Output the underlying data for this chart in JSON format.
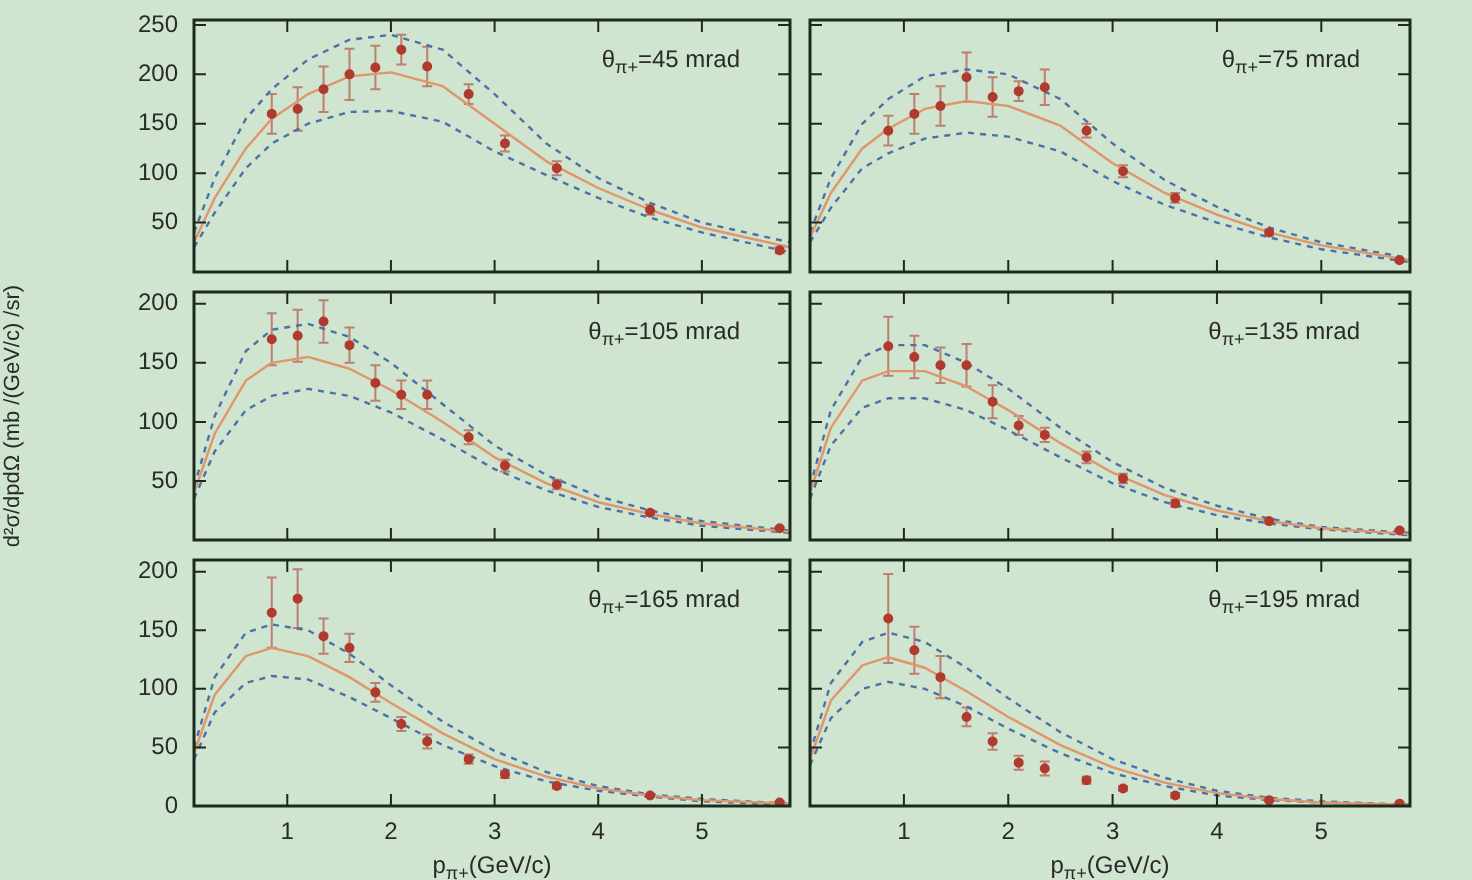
{
  "chart_data": [
    {
      "type": "scatter",
      "x": [
        0.85,
        1.1,
        1.35,
        1.6,
        1.85,
        2.1,
        2.35,
        2.75,
        3.1,
        3.6,
        4.5,
        5.75
      ],
      "xlim": [
        0.1,
        5.85
      ],
      "xticks": [
        1,
        2,
        3,
        4,
        5
      ],
      "ylim": [
        0,
        255
      ],
      "yticks": [
        50,
        100,
        150,
        200,
        250
      ],
      "tick_labels": "y",
      "annotations": [
        "θ$_{π+}$=45 mrad"
      ],
      "series": [
        {
          "type": "scatter",
          "marker": "circle",
          "color": "#b03a2e",
          "values": [
            160,
            165,
            185,
            200,
            207,
            225,
            208,
            180,
            130,
            105,
            63,
            22
          ],
          "errors": [
            20,
            22,
            23,
            26,
            22,
            15,
            20,
            10,
            8,
            7,
            5,
            3
          ]
        },
        {
          "type": "line",
          "marker": "none",
          "color": "#e0956b",
          "x": [
            0.1,
            0.3,
            0.6,
            0.85,
            1.2,
            1.6,
            2.0,
            2.5,
            3.0,
            3.5,
            4.0,
            4.5,
            5.0,
            5.85
          ],
          "values": [
            30,
            75,
            125,
            155,
            180,
            198,
            202,
            188,
            150,
            112,
            85,
            63,
            45,
            25
          ]
        },
        {
          "type": "line",
          "marker": "none",
          "line_style": "dashed",
          "color": "#4a72a8",
          "x": [
            0.1,
            0.3,
            0.6,
            0.85,
            1.2,
            1.6,
            2.0,
            2.5,
            3.0,
            3.5,
            4.0,
            4.5,
            5.0,
            5.85
          ],
          "values": [
            40,
            95,
            155,
            185,
            215,
            235,
            240,
            225,
            180,
            130,
            95,
            70,
            50,
            30
          ]
        },
        {
          "type": "line",
          "marker": "none",
          "line_style": "dashed",
          "color": "#4a72a8",
          "x": [
            0.1,
            0.3,
            0.6,
            0.85,
            1.2,
            1.6,
            2.0,
            2.5,
            3.0,
            3.5,
            4.0,
            4.5,
            5.0,
            5.85
          ],
          "values": [
            25,
            60,
            105,
            130,
            150,
            162,
            163,
            152,
            122,
            98,
            75,
            55,
            40,
            20
          ]
        }
      ]
    },
    {
      "type": "scatter",
      "x": [
        0.85,
        1.1,
        1.35,
        1.6,
        1.85,
        2.1,
        2.35,
        2.75,
        3.1,
        3.6,
        4.5,
        5.75
      ],
      "xlim": [
        0.1,
        5.85
      ],
      "xticks": [
        1,
        2,
        3,
        4,
        5
      ],
      "ylim": [
        0,
        255
      ],
      "yticks": [
        50,
        100,
        150,
        200,
        250
      ],
      "tick_labels": false,
      "annotations": [
        "θ$_{π+}$=75 mrad"
      ],
      "series": [
        {
          "type": "scatter",
          "marker": "circle",
          "color": "#b03a2e",
          "values": [
            143,
            160,
            168,
            197,
            177,
            183,
            187,
            143,
            102,
            75,
            40,
            12
          ],
          "errors": [
            15,
            20,
            20,
            25,
            20,
            10,
            18,
            7,
            6,
            5,
            3,
            2
          ]
        },
        {
          "type": "line",
          "marker": "none",
          "color": "#e0956b",
          "x": [
            0.1,
            0.3,
            0.6,
            0.85,
            1.2,
            1.6,
            2.0,
            2.5,
            3.0,
            3.5,
            4.0,
            4.5,
            5.0,
            5.85
          ],
          "values": [
            35,
            80,
            125,
            145,
            165,
            173,
            168,
            148,
            110,
            80,
            58,
            40,
            27,
            12
          ]
        },
        {
          "type": "line",
          "marker": "none",
          "line_style": "dashed",
          "color": "#4a72a8",
          "x": [
            0.1,
            0.3,
            0.6,
            0.85,
            1.2,
            1.6,
            2.0,
            2.5,
            3.0,
            3.5,
            4.0,
            4.5,
            5.0,
            5.85
          ],
          "values": [
            40,
            95,
            150,
            175,
            198,
            205,
            200,
            175,
            130,
            93,
            66,
            45,
            30,
            14
          ]
        },
        {
          "type": "line",
          "marker": "none",
          "line_style": "dashed",
          "color": "#4a72a8",
          "x": [
            0.1,
            0.3,
            0.6,
            0.85,
            1.2,
            1.6,
            2.0,
            2.5,
            3.0,
            3.5,
            4.0,
            4.5,
            5.0,
            5.85
          ],
          "values": [
            30,
            65,
            105,
            120,
            135,
            141,
            137,
            122,
            92,
            68,
            50,
            35,
            23,
            10
          ]
        }
      ]
    },
    {
      "type": "scatter",
      "x": [
        0.85,
        1.1,
        1.35,
        1.6,
        1.85,
        2.1,
        2.35,
        2.75,
        3.1,
        3.6,
        4.5,
        5.75
      ],
      "xlim": [
        0.1,
        5.85
      ],
      "xticks": [
        1,
        2,
        3,
        4,
        5
      ],
      "ylim": [
        0,
        210
      ],
      "yticks": [
        50,
        100,
        150,
        200
      ],
      "tick_labels": "y",
      "ylabel": "d²σ/dpdΩ (mb /(GeV/c) /sr)",
      "annotations": [
        "θ$_{π+}$=105 mrad"
      ],
      "series": [
        {
          "type": "scatter",
          "marker": "circle",
          "color": "#b03a2e",
          "values": [
            170,
            173,
            185,
            165,
            133,
            123,
            123,
            87,
            63,
            47,
            23,
            10
          ],
          "errors": [
            22,
            22,
            18,
            15,
            15,
            12,
            12,
            6,
            5,
            4,
            2,
            1
          ]
        },
        {
          "type": "line",
          "marker": "none",
          "color": "#e0956b",
          "x": [
            0.1,
            0.3,
            0.6,
            0.85,
            1.2,
            1.6,
            2.0,
            2.5,
            3.0,
            3.5,
            4.0,
            4.5,
            5.0,
            5.85
          ],
          "values": [
            40,
            90,
            135,
            150,
            155,
            145,
            127,
            100,
            70,
            48,
            32,
            22,
            14,
            7
          ]
        },
        {
          "type": "line",
          "marker": "none",
          "line_style": "dashed",
          "color": "#4a72a8",
          "x": [
            0.1,
            0.3,
            0.6,
            0.85,
            1.2,
            1.6,
            2.0,
            2.5,
            3.0,
            3.5,
            4.0,
            4.5,
            5.0,
            5.85
          ],
          "values": [
            45,
            105,
            160,
            178,
            183,
            172,
            150,
            115,
            80,
            55,
            37,
            25,
            16,
            8
          ]
        },
        {
          "type": "line",
          "marker": "none",
          "line_style": "dashed",
          "color": "#4a72a8",
          "x": [
            0.1,
            0.3,
            0.6,
            0.85,
            1.2,
            1.6,
            2.0,
            2.5,
            3.0,
            3.5,
            4.0,
            4.5,
            5.0,
            5.85
          ],
          "values": [
            35,
            75,
            110,
            122,
            128,
            122,
            108,
            85,
            60,
            42,
            28,
            19,
            12,
            6
          ]
        }
      ]
    },
    {
      "type": "scatter",
      "x": [
        0.85,
        1.1,
        1.35,
        1.6,
        1.85,
        2.1,
        2.35,
        2.75,
        3.1,
        3.6,
        4.5,
        5.75
      ],
      "xlim": [
        0.1,
        5.85
      ],
      "xticks": [
        1,
        2,
        3,
        4,
        5
      ],
      "ylim": [
        0,
        210
      ],
      "yticks": [
        50,
        100,
        150,
        200
      ],
      "tick_labels": false,
      "annotations": [
        "θ$_{π+}$=135 mrad"
      ],
      "series": [
        {
          "type": "scatter",
          "marker": "circle",
          "color": "#b03a2e",
          "values": [
            164,
            155,
            148,
            148,
            117,
            97,
            89,
            70,
            52,
            31,
            16,
            8
          ],
          "errors": [
            25,
            18,
            15,
            18,
            14,
            8,
            6,
            5,
            4,
            3,
            2,
            1
          ]
        },
        {
          "type": "line",
          "marker": "none",
          "color": "#e0956b",
          "x": [
            0.1,
            0.3,
            0.6,
            0.85,
            1.2,
            1.6,
            2.0,
            2.5,
            3.0,
            3.5,
            4.0,
            4.5,
            5.0,
            5.85
          ],
          "values": [
            40,
            95,
            135,
            143,
            143,
            130,
            110,
            82,
            57,
            38,
            25,
            16,
            10,
            5
          ]
        },
        {
          "type": "line",
          "marker": "none",
          "line_style": "dashed",
          "color": "#4a72a8",
          "x": [
            0.1,
            0.3,
            0.6,
            0.85,
            1.2,
            1.6,
            2.0,
            2.5,
            3.0,
            3.5,
            4.0,
            4.5,
            5.0,
            5.85
          ],
          "values": [
            45,
            110,
            155,
            165,
            165,
            150,
            128,
            95,
            66,
            44,
            29,
            18,
            11,
            6
          ]
        },
        {
          "type": "line",
          "marker": "none",
          "line_style": "dashed",
          "color": "#4a72a8",
          "x": [
            0.1,
            0.3,
            0.6,
            0.85,
            1.2,
            1.6,
            2.0,
            2.5,
            3.0,
            3.5,
            4.0,
            4.5,
            5.0,
            5.85
          ],
          "values": [
            35,
            80,
            112,
            120,
            120,
            110,
            93,
            70,
            48,
            32,
            21,
            14,
            9,
            4
          ]
        }
      ]
    },
    {
      "type": "scatter",
      "x": [
        0.85,
        1.1,
        1.35,
        1.6,
        1.85,
        2.1,
        2.35,
        2.75,
        3.1,
        3.6,
        4.5,
        5.75
      ],
      "xlim": [
        0.1,
        5.85
      ],
      "xticks": [
        1,
        2,
        3,
        4,
        5
      ],
      "ylim": [
        0,
        210
      ],
      "yticks": [
        0,
        50,
        100,
        150,
        200
      ],
      "xlabel": "p$_{π+}$(GeV/c)",
      "annotations": [
        "θ$_{π+}$=165 mrad"
      ],
      "series": [
        {
          "type": "scatter",
          "marker": "circle",
          "color": "#b03a2e",
          "values": [
            165,
            177,
            145,
            135,
            97,
            70,
            55,
            40,
            27,
            17,
            9,
            3
          ],
          "errors": [
            30,
            25,
            15,
            12,
            8,
            6,
            6,
            4,
            3,
            2,
            1,
            1
          ]
        },
        {
          "type": "line",
          "marker": "none",
          "color": "#e0956b",
          "x": [
            0.1,
            0.3,
            0.6,
            0.85,
            1.2,
            1.6,
            2.0,
            2.5,
            3.0,
            3.5,
            4.0,
            4.5,
            5.0,
            5.85
          ],
          "values": [
            45,
            95,
            128,
            135,
            128,
            110,
            88,
            62,
            40,
            25,
            15,
            9,
            5,
            2
          ]
        },
        {
          "type": "line",
          "marker": "none",
          "line_style": "dashed",
          "color": "#4a72a8",
          "x": [
            0.1,
            0.3,
            0.6,
            0.85,
            1.2,
            1.6,
            2.0,
            2.5,
            3.0,
            3.5,
            4.0,
            4.5,
            5.0,
            5.85
          ],
          "values": [
            50,
            110,
            148,
            155,
            150,
            130,
            103,
            72,
            47,
            29,
            17,
            10,
            6,
            2
          ]
        },
        {
          "type": "line",
          "marker": "none",
          "line_style": "dashed",
          "color": "#4a72a8",
          "x": [
            0.1,
            0.3,
            0.6,
            0.85,
            1.2,
            1.6,
            2.0,
            2.5,
            3.0,
            3.5,
            4.0,
            4.5,
            5.0,
            5.85
          ],
          "values": [
            40,
            80,
            105,
            111,
            108,
            93,
            75,
            52,
            34,
            21,
            13,
            8,
            4,
            1
          ]
        }
      ]
    },
    {
      "type": "scatter",
      "x": [
        0.85,
        1.1,
        1.35,
        1.6,
        1.85,
        2.1,
        2.35,
        2.75,
        3.1,
        3.6,
        4.5,
        5.75
      ],
      "xlim": [
        0.1,
        5.85
      ],
      "xticks": [
        1,
        2,
        3,
        4,
        5
      ],
      "ylim": [
        0,
        210
      ],
      "yticks": [
        0,
        50,
        100,
        150,
        200
      ],
      "tick_labels": "x",
      "xlabel": "p$_{π+}$(GeV/c)",
      "annotations": [
        "θ$_{π+}$=195 mrad"
      ],
      "series": [
        {
          "type": "scatter",
          "marker": "circle",
          "color": "#b03a2e",
          "values": [
            160,
            133,
            110,
            76,
            55,
            37,
            32,
            22,
            15,
            9,
            5,
            2
          ],
          "errors": [
            38,
            20,
            18,
            8,
            7,
            6,
            6,
            3,
            2,
            2,
            1,
            1
          ]
        },
        {
          "type": "line",
          "marker": "none",
          "color": "#e0956b",
          "x": [
            0.1,
            0.3,
            0.6,
            0.85,
            1.2,
            1.6,
            2.0,
            2.5,
            3.0,
            3.5,
            4.0,
            4.5,
            5.0,
            5.85
          ],
          "values": [
            40,
            90,
            120,
            127,
            118,
            98,
            76,
            52,
            33,
            20,
            11,
            6,
            3,
            1
          ]
        },
        {
          "type": "line",
          "marker": "none",
          "line_style": "dashed",
          "color": "#4a72a8",
          "x": [
            0.1,
            0.3,
            0.6,
            0.85,
            1.2,
            1.6,
            2.0,
            2.5,
            3.0,
            3.5,
            4.0,
            4.5,
            5.0,
            5.85
          ],
          "values": [
            45,
            105,
            140,
            148,
            140,
            118,
            92,
            63,
            40,
            24,
            13,
            7,
            4,
            1
          ]
        },
        {
          "type": "line",
          "marker": "none",
          "line_style": "dashed",
          "color": "#4a72a8",
          "x": [
            0.1,
            0.3,
            0.6,
            0.85,
            1.2,
            1.6,
            2.0,
            2.5,
            3.0,
            3.5,
            4.0,
            4.5,
            5.0,
            5.85
          ],
          "values": [
            35,
            75,
            100,
            106,
            100,
            85,
            66,
            45,
            28,
            17,
            9,
            5,
            3,
            1
          ]
        }
      ]
    }
  ]
}
